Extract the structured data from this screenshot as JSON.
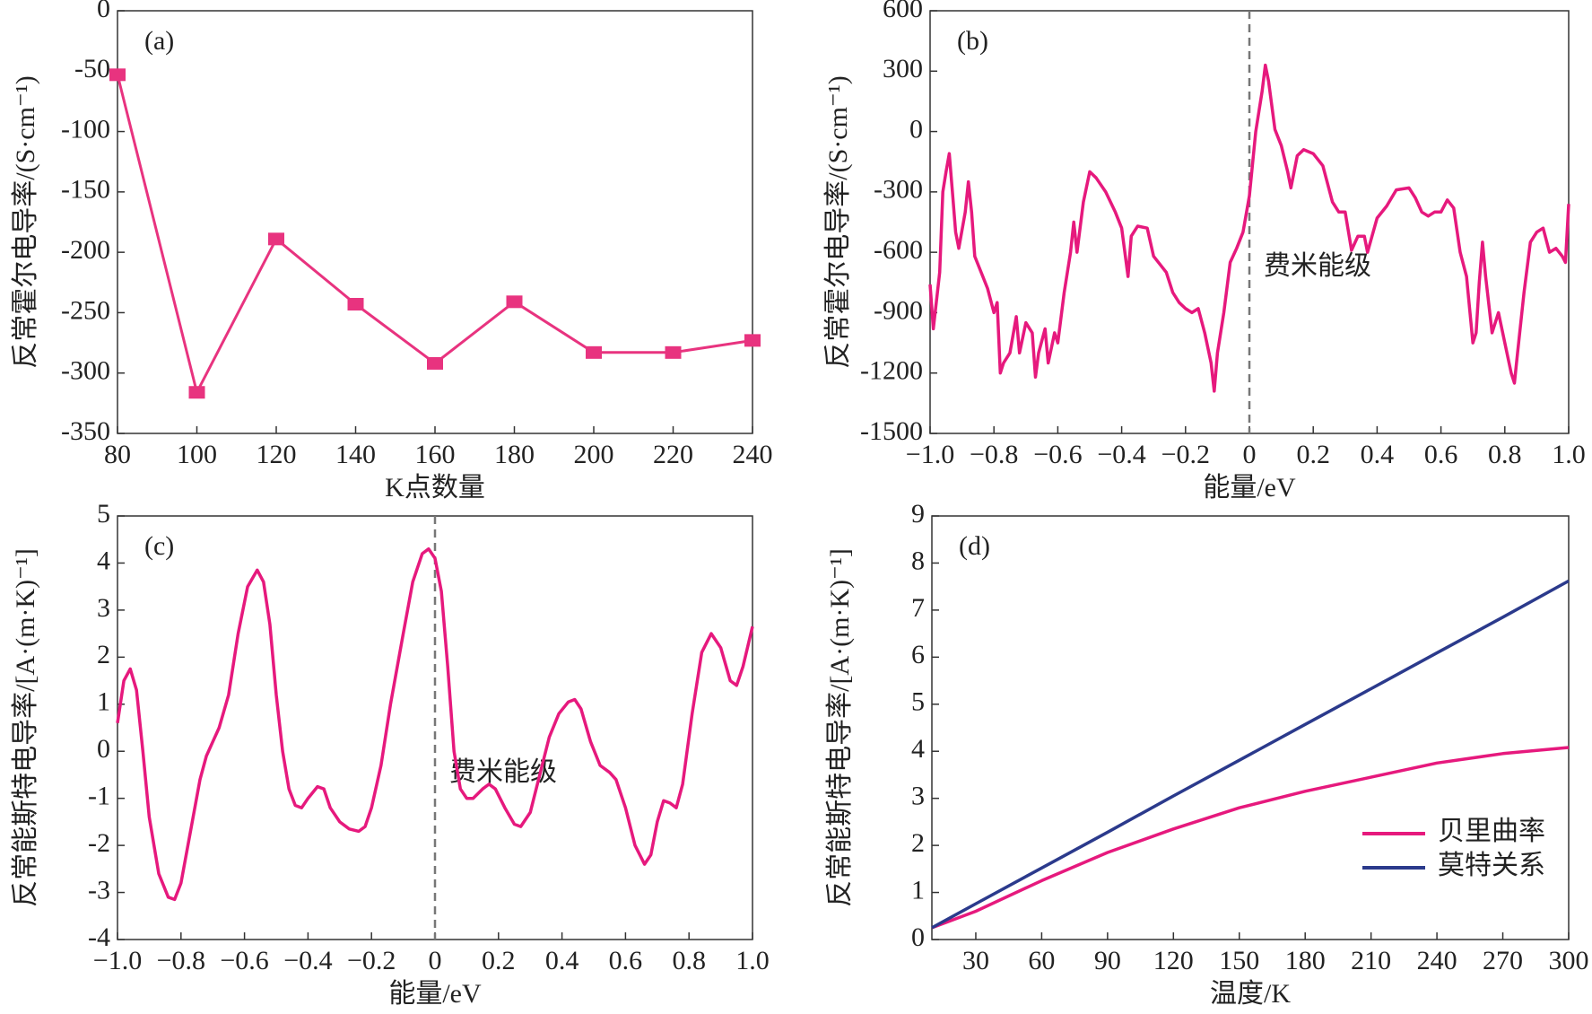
{
  "chart_data": [
    {
      "type": "line",
      "annotation": "(a)",
      "x_label": "K点数量",
      "y_label": "反常霍尔电导率/(S·cm⁻¹)",
      "x": [
        80,
        100,
        120,
        140,
        160,
        180,
        200,
        220,
        240
      ],
      "series": [
        {
          "color": "#e8337f",
          "marker": "square",
          "values": [
            -53,
            -316,
            -189,
            -243,
            -292,
            -241,
            -283,
            -283,
            -273
          ]
        }
      ],
      "xlim": [
        80,
        240
      ],
      "xticks": [
        80,
        100,
        120,
        140,
        160,
        180,
        200,
        220,
        240
      ],
      "ylim": [
        -350,
        0
      ],
      "yticks": [
        0,
        -50,
        -100,
        -150,
        -200,
        -250,
        -300,
        -350
      ]
    },
    {
      "type": "line",
      "annotation": "(b)",
      "x_label": "能量/eV",
      "y_label": "反常霍尔电导率/(S·cm⁻¹)",
      "vline": 0,
      "vline_label": "费米能级",
      "x": [
        -1.0,
        -0.99,
        -0.97,
        -0.96,
        -0.95,
        -0.94,
        -0.93,
        -0.92,
        -0.91,
        -0.89,
        -0.88,
        -0.87,
        -0.86,
        -0.84,
        -0.82,
        -0.8,
        -0.79,
        -0.78,
        -0.77,
        -0.75,
        -0.73,
        -0.72,
        -0.7,
        -0.68,
        -0.67,
        -0.66,
        -0.64,
        -0.63,
        -0.61,
        -0.6,
        -0.58,
        -0.56,
        -0.55,
        -0.54,
        -0.52,
        -0.5,
        -0.48,
        -0.45,
        -0.42,
        -0.4,
        -0.38,
        -0.37,
        -0.35,
        -0.32,
        -0.3,
        -0.28,
        -0.26,
        -0.24,
        -0.22,
        -0.2,
        -0.18,
        -0.16,
        -0.14,
        -0.12,
        -0.11,
        -0.1,
        -0.08,
        -0.06,
        -0.04,
        -0.02,
        0.0,
        0.02,
        0.04,
        0.05,
        0.06,
        0.08,
        0.1,
        0.12,
        0.13,
        0.15,
        0.17,
        0.2,
        0.23,
        0.26,
        0.28,
        0.3,
        0.32,
        0.34,
        0.36,
        0.37,
        0.4,
        0.43,
        0.46,
        0.5,
        0.52,
        0.54,
        0.56,
        0.58,
        0.6,
        0.62,
        0.64,
        0.66,
        0.68,
        0.7,
        0.71,
        0.72,
        0.73,
        0.74,
        0.76,
        0.78,
        0.8,
        0.82,
        0.83,
        0.84,
        0.86,
        0.88,
        0.9,
        0.92,
        0.94,
        0.96,
        0.98,
        0.99,
        1.0
      ],
      "series": [
        {
          "color": "#e6197d",
          "values": [
            -760,
            -980,
            -700,
            -300,
            -200,
            -110,
            -300,
            -500,
            -580,
            -400,
            -250,
            -400,
            -620,
            -700,
            -780,
            -900,
            -850,
            -1200,
            -1150,
            -1100,
            -920,
            -1100,
            -950,
            -1000,
            -1220,
            -1100,
            -980,
            -1150,
            -1000,
            -1050,
            -800,
            -600,
            -450,
            -600,
            -350,
            -200,
            -230,
            -300,
            -400,
            -480,
            -720,
            -520,
            -470,
            -480,
            -620,
            -660,
            -700,
            -800,
            -850,
            -880,
            -900,
            -880,
            -1000,
            -1150,
            -1290,
            -1100,
            -900,
            -650,
            -580,
            -500,
            -320,
            0,
            200,
            330,
            250,
            10,
            -70,
            -200,
            -280,
            -120,
            -90,
            -110,
            -170,
            -350,
            -400,
            -400,
            -590,
            -520,
            -520,
            -600,
            -430,
            -370,
            -290,
            -280,
            -330,
            -400,
            -420,
            -400,
            -400,
            -340,
            -380,
            -600,
            -720,
            -1050,
            -1000,
            -750,
            -550,
            -720,
            -1000,
            -900,
            -1050,
            -1200,
            -1250,
            -1100,
            -800,
            -550,
            -500,
            -480,
            -600,
            -580,
            -620,
            -650,
            -360
          ]
        }
      ],
      "xlim": [
        -1,
        1
      ],
      "xticks": [
        {
          "value": -1,
          "label": "−1.0"
        },
        {
          "value": -0.8,
          "label": "−0.8"
        },
        {
          "value": -0.6,
          "label": "−0.6"
        },
        {
          "value": -0.4,
          "label": "−0.4"
        },
        {
          "value": -0.2,
          "label": "−0.2"
        },
        0,
        0.2,
        0.4,
        0.6,
        0.8,
        {
          "value": 1,
          "label": "1.0"
        }
      ],
      "ylim": [
        -1500,
        600
      ],
      "yticks": [
        600,
        300,
        0,
        -300,
        -600,
        -900,
        -1200,
        -1500
      ]
    },
    {
      "type": "line",
      "annotation": "(c)",
      "x_label": "能量/eV",
      "y_label": "反常能斯特电导率/[A·(m·K)⁻¹]",
      "vline": 0,
      "vline_label": "费米能级",
      "x": [
        -1.0,
        -0.98,
        -0.96,
        -0.94,
        -0.92,
        -0.9,
        -0.87,
        -0.84,
        -0.82,
        -0.8,
        -0.77,
        -0.74,
        -0.72,
        -0.7,
        -0.68,
        -0.65,
        -0.62,
        -0.59,
        -0.56,
        -0.54,
        -0.52,
        -0.5,
        -0.48,
        -0.46,
        -0.44,
        -0.42,
        -0.4,
        -0.37,
        -0.35,
        -0.33,
        -0.3,
        -0.27,
        -0.24,
        -0.22,
        -0.2,
        -0.17,
        -0.14,
        -0.1,
        -0.07,
        -0.04,
        -0.02,
        0.0,
        0.02,
        0.04,
        0.06,
        0.08,
        0.1,
        0.12,
        0.15,
        0.17,
        0.19,
        0.22,
        0.25,
        0.27,
        0.3,
        0.33,
        0.36,
        0.39,
        0.42,
        0.44,
        0.46,
        0.49,
        0.52,
        0.55,
        0.57,
        0.6,
        0.63,
        0.66,
        0.68,
        0.7,
        0.72,
        0.74,
        0.76,
        0.78,
        0.81,
        0.84,
        0.87,
        0.9,
        0.93,
        0.95,
        0.97,
        1.0
      ],
      "series": [
        {
          "color": "#e6197d",
          "values": [
            0.6,
            1.5,
            1.75,
            1.3,
            0,
            -1.4,
            -2.6,
            -3.1,
            -3.15,
            -2.8,
            -1.7,
            -0.6,
            -0.1,
            0.2,
            0.5,
            1.2,
            2.5,
            3.5,
            3.85,
            3.6,
            2.7,
            1.2,
            0,
            -0.8,
            -1.15,
            -1.2,
            -1.0,
            -0.75,
            -0.8,
            -1.2,
            -1.5,
            -1.65,
            -1.7,
            -1.6,
            -1.2,
            -0.3,
            1.0,
            2.5,
            3.6,
            4.2,
            4.3,
            4.1,
            3.4,
            1.8,
            0.0,
            -0.8,
            -1.0,
            -1.0,
            -0.8,
            -0.7,
            -0.8,
            -1.2,
            -1.55,
            -1.6,
            -1.3,
            -0.5,
            0.3,
            0.8,
            1.05,
            1.1,
            0.9,
            0.2,
            -0.3,
            -0.45,
            -0.6,
            -1.2,
            -2.0,
            -2.4,
            -2.2,
            -1.5,
            -1.05,
            -1.1,
            -1.2,
            -0.7,
            0.8,
            2.1,
            2.5,
            2.2,
            1.5,
            1.4,
            1.8,
            2.65
          ]
        }
      ],
      "xlim": [
        -1,
        1
      ],
      "xticks": [
        {
          "value": -1,
          "label": "−1.0"
        },
        {
          "value": -0.8,
          "label": "−0.8"
        },
        {
          "value": -0.6,
          "label": "−0.6"
        },
        {
          "value": -0.4,
          "label": "−0.4"
        },
        {
          "value": -0.2,
          "label": "−0.2"
        },
        0,
        0.2,
        0.4,
        0.6,
        0.8,
        {
          "value": 1,
          "label": "1.0"
        }
      ],
      "ylim": [
        -4,
        5
      ],
      "yticks": [
        5,
        4,
        3,
        2,
        1,
        0,
        -1,
        -2,
        -3,
        -4
      ]
    },
    {
      "type": "line",
      "annotation": "(d)",
      "x_label": "温度/K",
      "y_label": "反常能斯特电导率/[A·(m·K)⁻¹]",
      "legend": "lower right",
      "x": [
        10,
        30,
        60,
        90,
        120,
        150,
        180,
        210,
        240,
        270,
        300
      ],
      "series": [
        {
          "name": "贝里曲率",
          "color": "#e6197d",
          "values": [
            0.25,
            0.6,
            1.25,
            1.85,
            2.35,
            2.8,
            3.15,
            3.45,
            3.75,
            3.95,
            4.08
          ]
        },
        {
          "name": "莫特关系",
          "color": "#2b3a8c",
          "values": [
            0.25,
            0.76,
            1.52,
            2.28,
            3.05,
            3.81,
            4.57,
            5.33,
            6.09,
            6.85,
            7.62
          ]
        }
      ],
      "xlim": [
        10,
        300
      ],
      "xticks": [
        30,
        60,
        90,
        120,
        150,
        180,
        210,
        240,
        270,
        300
      ],
      "ylim": [
        0,
        9
      ],
      "yticks": [
        0,
        1,
        2,
        3,
        4,
        5,
        6,
        7,
        8,
        9
      ]
    }
  ]
}
